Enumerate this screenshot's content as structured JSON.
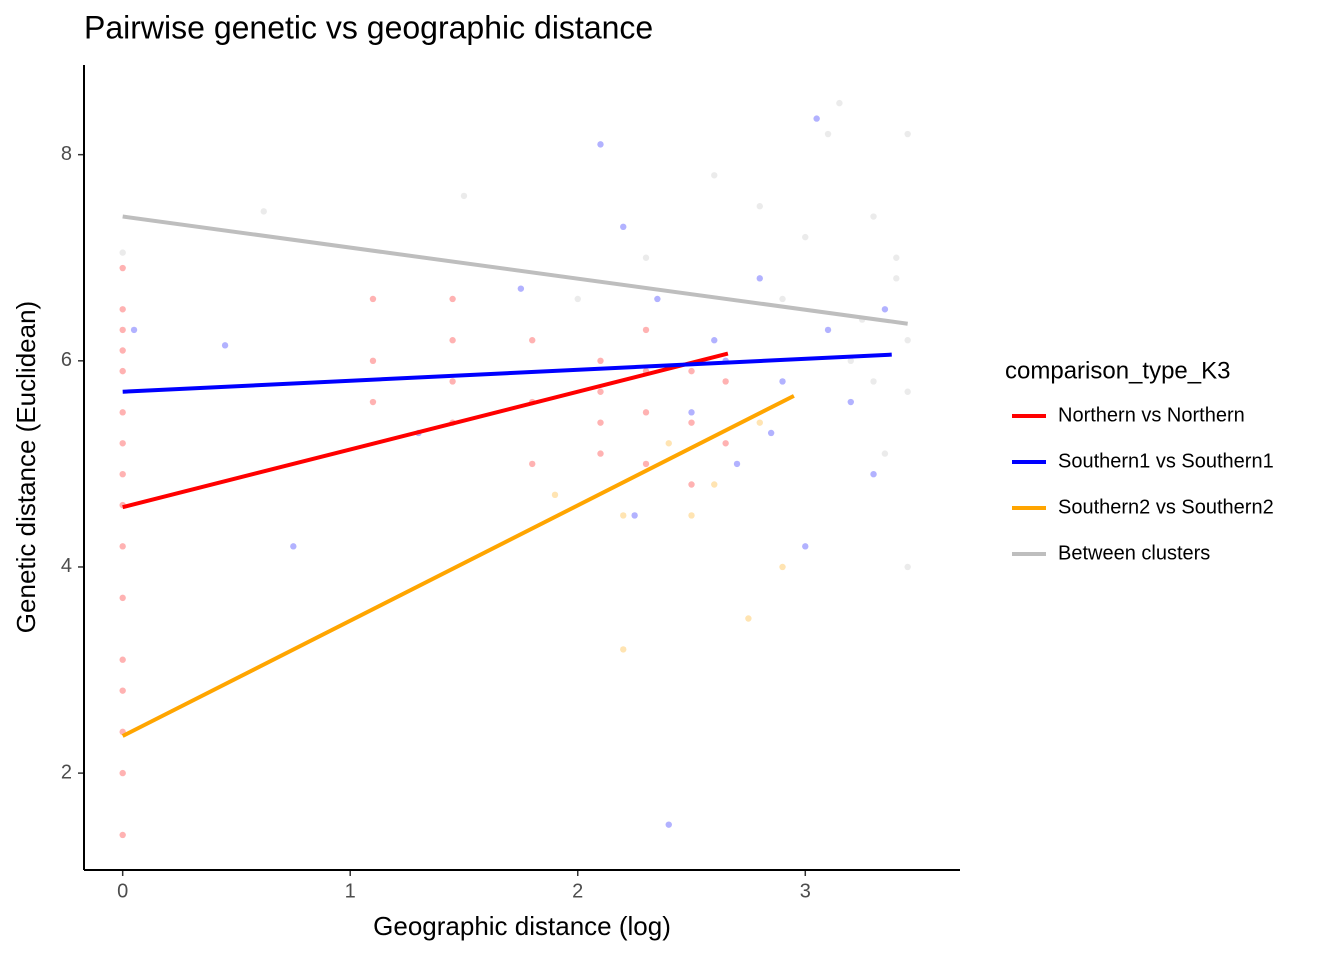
{
  "chart_data": {
    "type": "scatter",
    "title": "Pairwise genetic vs geographic distance",
    "x_label": "Geographic distance (log)",
    "y_label": "Genetic distance (Euclidean)",
    "legend_title": "comparison_type_K3",
    "legend_position": "right",
    "grid": false,
    "xlim": [
      -0.17,
      3.68
    ],
    "ylim": [
      1.06,
      8.87
    ],
    "xticks": [
      0,
      1,
      2,
      3
    ],
    "yticks": [
      2,
      4,
      6,
      8
    ],
    "series": [
      {
        "name": "Northern vs Northern",
        "color": "#ff0000",
        "x": [
          0,
          0,
          0,
          0,
          0,
          0,
          0,
          0,
          0,
          0,
          0,
          0,
          0,
          0,
          0,
          0,
          1.1,
          1.1,
          1.1,
          1.45,
          1.45,
          1.45,
          1.45,
          1.8,
          1.8,
          1.8,
          2.1,
          2.1,
          2.1,
          2.1,
          2.3,
          2.3,
          2.3,
          2.3,
          2.5,
          2.5,
          2.5,
          2.65,
          2.65
        ],
        "values": [
          6.9,
          6.5,
          6.3,
          6.1,
          5.9,
          5.5,
          5.2,
          4.9,
          4.6,
          4.2,
          3.7,
          3.1,
          2.8,
          2.4,
          2.0,
          1.4,
          6.6,
          6.0,
          5.6,
          6.6,
          6.2,
          5.8,
          5.4,
          6.2,
          5.6,
          5.0,
          6.0,
          5.7,
          5.4,
          5.1,
          6.3,
          5.9,
          5.5,
          5.0,
          5.9,
          5.4,
          4.8,
          5.8,
          5.2
        ],
        "fit_x": [
          0,
          2.66
        ],
        "fit_values": [
          4.58,
          6.07
        ]
      },
      {
        "name": "Southern1 vs Southern1",
        "color": "#0000ff",
        "x": [
          0.05,
          0.45,
          0.75,
          1.3,
          1.75,
          2.2,
          2.35,
          2.5,
          2.6,
          2.7,
          2.8,
          2.9,
          3.0,
          3.05,
          3.1,
          3.2,
          3.3,
          2.4,
          2.1,
          2.65,
          2.85,
          3.35,
          2.25
        ],
        "values": [
          6.3,
          6.15,
          4.2,
          5.3,
          6.7,
          7.3,
          6.6,
          5.5,
          6.2,
          5.0,
          6.8,
          5.8,
          4.2,
          8.35,
          6.3,
          5.6,
          4.9,
          1.5,
          8.1,
          6.0,
          5.3,
          6.5,
          4.5
        ],
        "fit_x": [
          0,
          3.38
        ],
        "fit_values": [
          5.7,
          6.06
        ]
      },
      {
        "name": "Southern2 vs Southern2",
        "color": "#ffa500",
        "x": [
          2.2,
          2.4,
          2.6,
          2.75,
          2.9,
          2.2,
          2.5,
          2.8,
          1.9
        ],
        "values": [
          4.5,
          5.2,
          4.8,
          3.5,
          4.0,
          3.2,
          4.5,
          5.4,
          4.7
        ],
        "fit_x": [
          0,
          2.95
        ],
        "fit_values": [
          2.36,
          5.66
        ]
      },
      {
        "name": "Between clusters",
        "color": "#bebebe",
        "x": [
          0,
          0.62,
          1.5,
          2.0,
          2.3,
          2.6,
          2.9,
          3.0,
          3.1,
          3.15,
          3.2,
          3.3,
          3.4,
          3.45,
          3.45,
          3.45,
          3.35,
          3.25,
          3.45,
          3.4,
          3.3,
          2.8
        ],
        "values": [
          7.05,
          7.45,
          7.6,
          6.6,
          7.0,
          7.8,
          6.6,
          7.2,
          8.2,
          8.5,
          6.0,
          7.4,
          6.8,
          8.2,
          5.7,
          4.0,
          5.1,
          6.4,
          6.2,
          7.0,
          5.8,
          7.5
        ],
        "fit_x": [
          0,
          3.45
        ],
        "fit_values": [
          7.4,
          6.36
        ]
      }
    ]
  }
}
